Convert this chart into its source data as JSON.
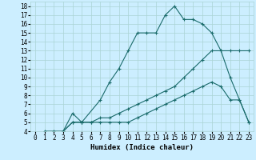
{
  "xlabel": "Humidex (Indice chaleur)",
  "background_color": "#cceeff",
  "line_color": "#1a6b6b",
  "grid_color": "#aad4d4",
  "xlim": [
    -0.5,
    23.5
  ],
  "ylim": [
    4,
    18.5
  ],
  "xticks": [
    0,
    1,
    2,
    3,
    4,
    5,
    6,
    7,
    8,
    9,
    10,
    11,
    12,
    13,
    14,
    15,
    16,
    17,
    18,
    19,
    20,
    21,
    22,
    23
  ],
  "yticks": [
    4,
    5,
    6,
    7,
    8,
    9,
    10,
    11,
    12,
    13,
    14,
    15,
    16,
    17,
    18
  ],
  "line1_x": [
    1,
    2,
    3,
    4,
    5,
    7,
    8,
    9,
    10,
    11,
    12,
    13,
    14,
    15,
    16,
    17,
    18,
    19,
    20,
    21,
    22,
    23
  ],
  "line1_y": [
    4,
    4,
    4,
    6,
    5,
    7.5,
    9.5,
    11,
    13,
    15,
    15,
    15,
    17,
    18,
    16.5,
    16.5,
    16,
    15,
    13,
    10,
    7.5,
    5
  ],
  "line2_x": [
    3,
    4,
    5,
    6,
    7,
    8,
    9,
    10,
    11,
    12,
    13,
    14,
    15,
    16,
    17,
    18,
    19,
    20,
    21,
    22,
    23
  ],
  "line2_y": [
    4,
    5,
    5,
    5,
    5.5,
    5.5,
    6,
    6.5,
    7,
    7.5,
    8,
    8.5,
    9,
    10,
    11,
    12,
    13,
    13,
    13,
    13,
    13
  ],
  "line3_x": [
    3,
    4,
    5,
    6,
    7,
    8,
    9,
    10,
    11,
    12,
    13,
    14,
    15,
    16,
    17,
    18,
    19,
    20,
    21,
    22,
    23
  ],
  "line3_y": [
    4,
    5,
    5,
    5,
    5,
    5,
    5,
    5,
    5.5,
    6,
    6.5,
    7,
    7.5,
    8,
    8.5,
    9,
    9.5,
    9,
    7.5,
    7.5,
    5
  ],
  "line4_x": [
    1,
    23
  ],
  "line4_y": [
    4,
    4
  ],
  "font_size_ticks": 5.5,
  "font_size_xlabel": 6.5
}
